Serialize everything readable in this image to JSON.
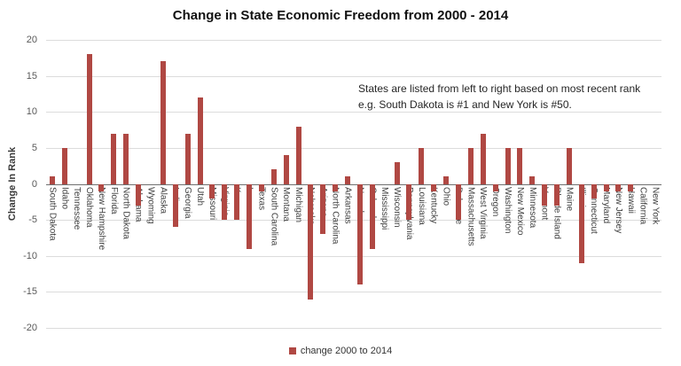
{
  "chart_data": {
    "type": "bar",
    "title": "Change in State Economic Freedom from 2000 - 2014",
    "ylabel": "Change In Rank",
    "xlabel": "",
    "ylim": [
      -20,
      20
    ],
    "yticks": [
      20,
      15,
      10,
      5,
      0,
      -5,
      -10,
      -15,
      -20
    ],
    "grid": true,
    "legend": "change 2000 to 2014",
    "legend_position": "bottom-center",
    "bar_color": "#b04843",
    "annotation": {
      "line1": "States are listed from left to right based on most recent rank",
      "line2": "e.g. South Dakota is #1 and New York is #50."
    },
    "categories": [
      "South Dakota",
      "Idaho",
      "Tennessee",
      "Oklahoma",
      "New Hampshire",
      "Florida",
      "North Dakota",
      "Alabama",
      "Wyoming",
      "Alaska",
      "Indiana",
      "Georgia",
      "Utah",
      "Missouri",
      "Virginia",
      "Kansas",
      "Iowa",
      "Texas",
      "South Carolina",
      "Montana",
      "Michigan",
      "Nebraska",
      "Arizona",
      "North Carolina",
      "Arkansas",
      "Nevada",
      "Colorado",
      "Mississippi",
      "Wisconsin",
      "Pennsylvania",
      "Louisiana",
      "Kentucky",
      "Ohio",
      "Delaware",
      "Massachusetts",
      "West Virginia",
      "Oregon",
      "Washington",
      "New Mexico",
      "Minnesota",
      "Vermont",
      "Rhode Island",
      "Maine",
      "Illinois",
      "Connecticut",
      "Maryland",
      "New Jersey",
      "Hawaii",
      "California",
      "New York"
    ],
    "values": [
      1,
      5,
      0,
      18,
      -1,
      7,
      7,
      -3,
      0,
      17,
      -6,
      7,
      12,
      -2,
      -5,
      -5,
      -9,
      -1,
      2,
      4,
      8,
      -16,
      -7,
      -1,
      1,
      -14,
      -9,
      0,
      3,
      -5,
      5,
      -1,
      1,
      -5,
      5,
      7,
      -1,
      5,
      5,
      1,
      -3,
      -3,
      5,
      -11,
      -2,
      -1,
      -1,
      -1,
      0,
      0
    ]
  }
}
